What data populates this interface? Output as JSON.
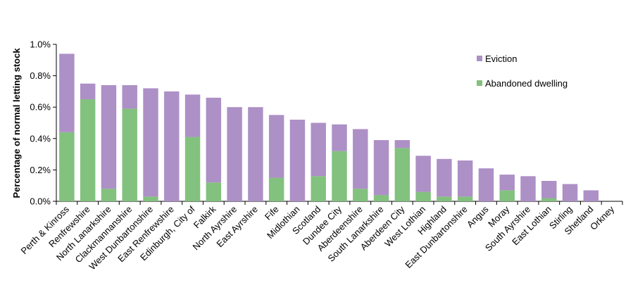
{
  "chart_data": {
    "type": "bar",
    "stacked": true,
    "ylabel": "Percentage of normal letting stock",
    "xlabel": "",
    "ylim": [
      0,
      1.0
    ],
    "yticks": [
      "0.0%",
      "0.2%",
      "0.4%",
      "0.6%",
      "0.8%",
      "1.0%"
    ],
    "grid": false,
    "legend_position": "right",
    "categories": [
      "Perth & Kinross",
      "Renfrewshire",
      "North Lanarkshire",
      "Clackmannanshire",
      "West Dunbartonshire",
      "East Renfrewshire",
      "Edinburgh, City of",
      "Falkirk",
      "North Ayrshire",
      "East Ayrshire",
      "Fife",
      "Midlothian",
      "Scotland",
      "Dundee City",
      "Aberdeenshire",
      "South Lanarkshire",
      "Aberdeen City",
      "West Lothian",
      "Highland",
      "East Dunbartonshire",
      "Angus",
      "Moray",
      "South Ayrshire",
      "East Lothian",
      "Stirling",
      "Shetland",
      "Orkney"
    ],
    "series": [
      {
        "name": "Abandoned dwelling",
        "color": "#82c17e",
        "values": [
          0.44,
          0.65,
          0.08,
          0.59,
          0.03,
          0.0,
          0.41,
          0.12,
          0.0,
          0.0,
          0.15,
          0.0,
          0.16,
          0.32,
          0.08,
          0.04,
          0.34,
          0.06,
          0.03,
          0.03,
          0.0,
          0.07,
          0.0,
          0.02,
          0.0,
          0.0,
          0.0
        ]
      },
      {
        "name": "Eviction",
        "color": "#ad90c6",
        "values": [
          0.5,
          0.1,
          0.66,
          0.15,
          0.69,
          0.7,
          0.27,
          0.54,
          0.6,
          0.6,
          0.4,
          0.52,
          0.34,
          0.17,
          0.38,
          0.35,
          0.05,
          0.23,
          0.24,
          0.23,
          0.21,
          0.1,
          0.16,
          0.11,
          0.11,
          0.07,
          0.0
        ]
      }
    ]
  },
  "legend": {
    "items": [
      {
        "label": "Eviction",
        "color": "#ad90c6"
      },
      {
        "label": "Abandoned dwelling",
        "color": "#82c17e"
      }
    ]
  },
  "axis": {
    "ylabel": "Percentage of normal letting stock"
  }
}
